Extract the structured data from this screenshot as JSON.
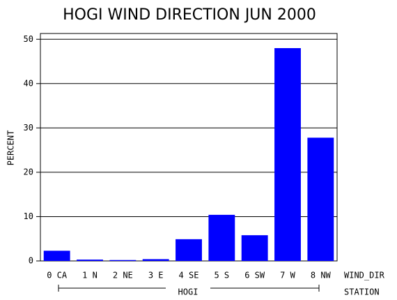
{
  "chart_data": {
    "type": "bar",
    "title": "HOGI WIND DIRECTION JUN 2000",
    "categories": [
      "0 CA",
      "1 N",
      "2 NE",
      "3 E",
      "4 SE",
      "5 S",
      "6 SW",
      "7 W",
      "8 NW"
    ],
    "values": [
      2.3,
      0.3,
      0.2,
      0.4,
      4.9,
      10.4,
      5.8,
      48.0,
      27.8
    ],
    "color": "#0000ff",
    "ylim": [
      0,
      51.3
    ],
    "yticks": [
      0,
      10,
      20,
      30,
      40,
      50
    ],
    "grid": true,
    "ylabel": "PERCENT",
    "xlabel": "WIND_DIR",
    "group_label": "HOGI",
    "group_axis_label": "STATION"
  }
}
